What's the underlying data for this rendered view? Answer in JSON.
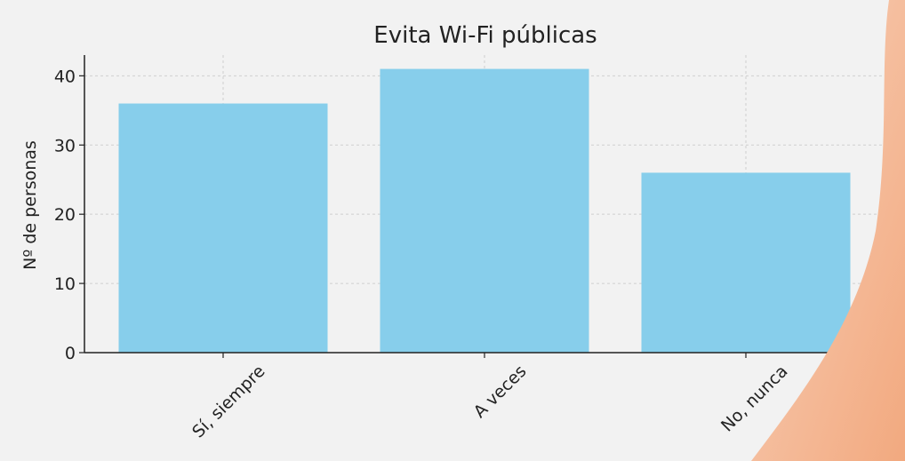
{
  "chart_data": {
    "type": "bar",
    "title": "Evita Wi-Fi públicas",
    "xlabel": "",
    "ylabel": "Nº de personas",
    "categories": [
      "Sí, siempre",
      "A veces",
      "No, nunca"
    ],
    "values": [
      36,
      41,
      26
    ],
    "ylim": [
      0,
      43
    ],
    "yticks": [
      0,
      10,
      20,
      30,
      40
    ],
    "grid": true,
    "bar_color": "#87ceeb"
  },
  "colors": {
    "background": "#f2f2f2",
    "decoration": "#f5b996"
  }
}
